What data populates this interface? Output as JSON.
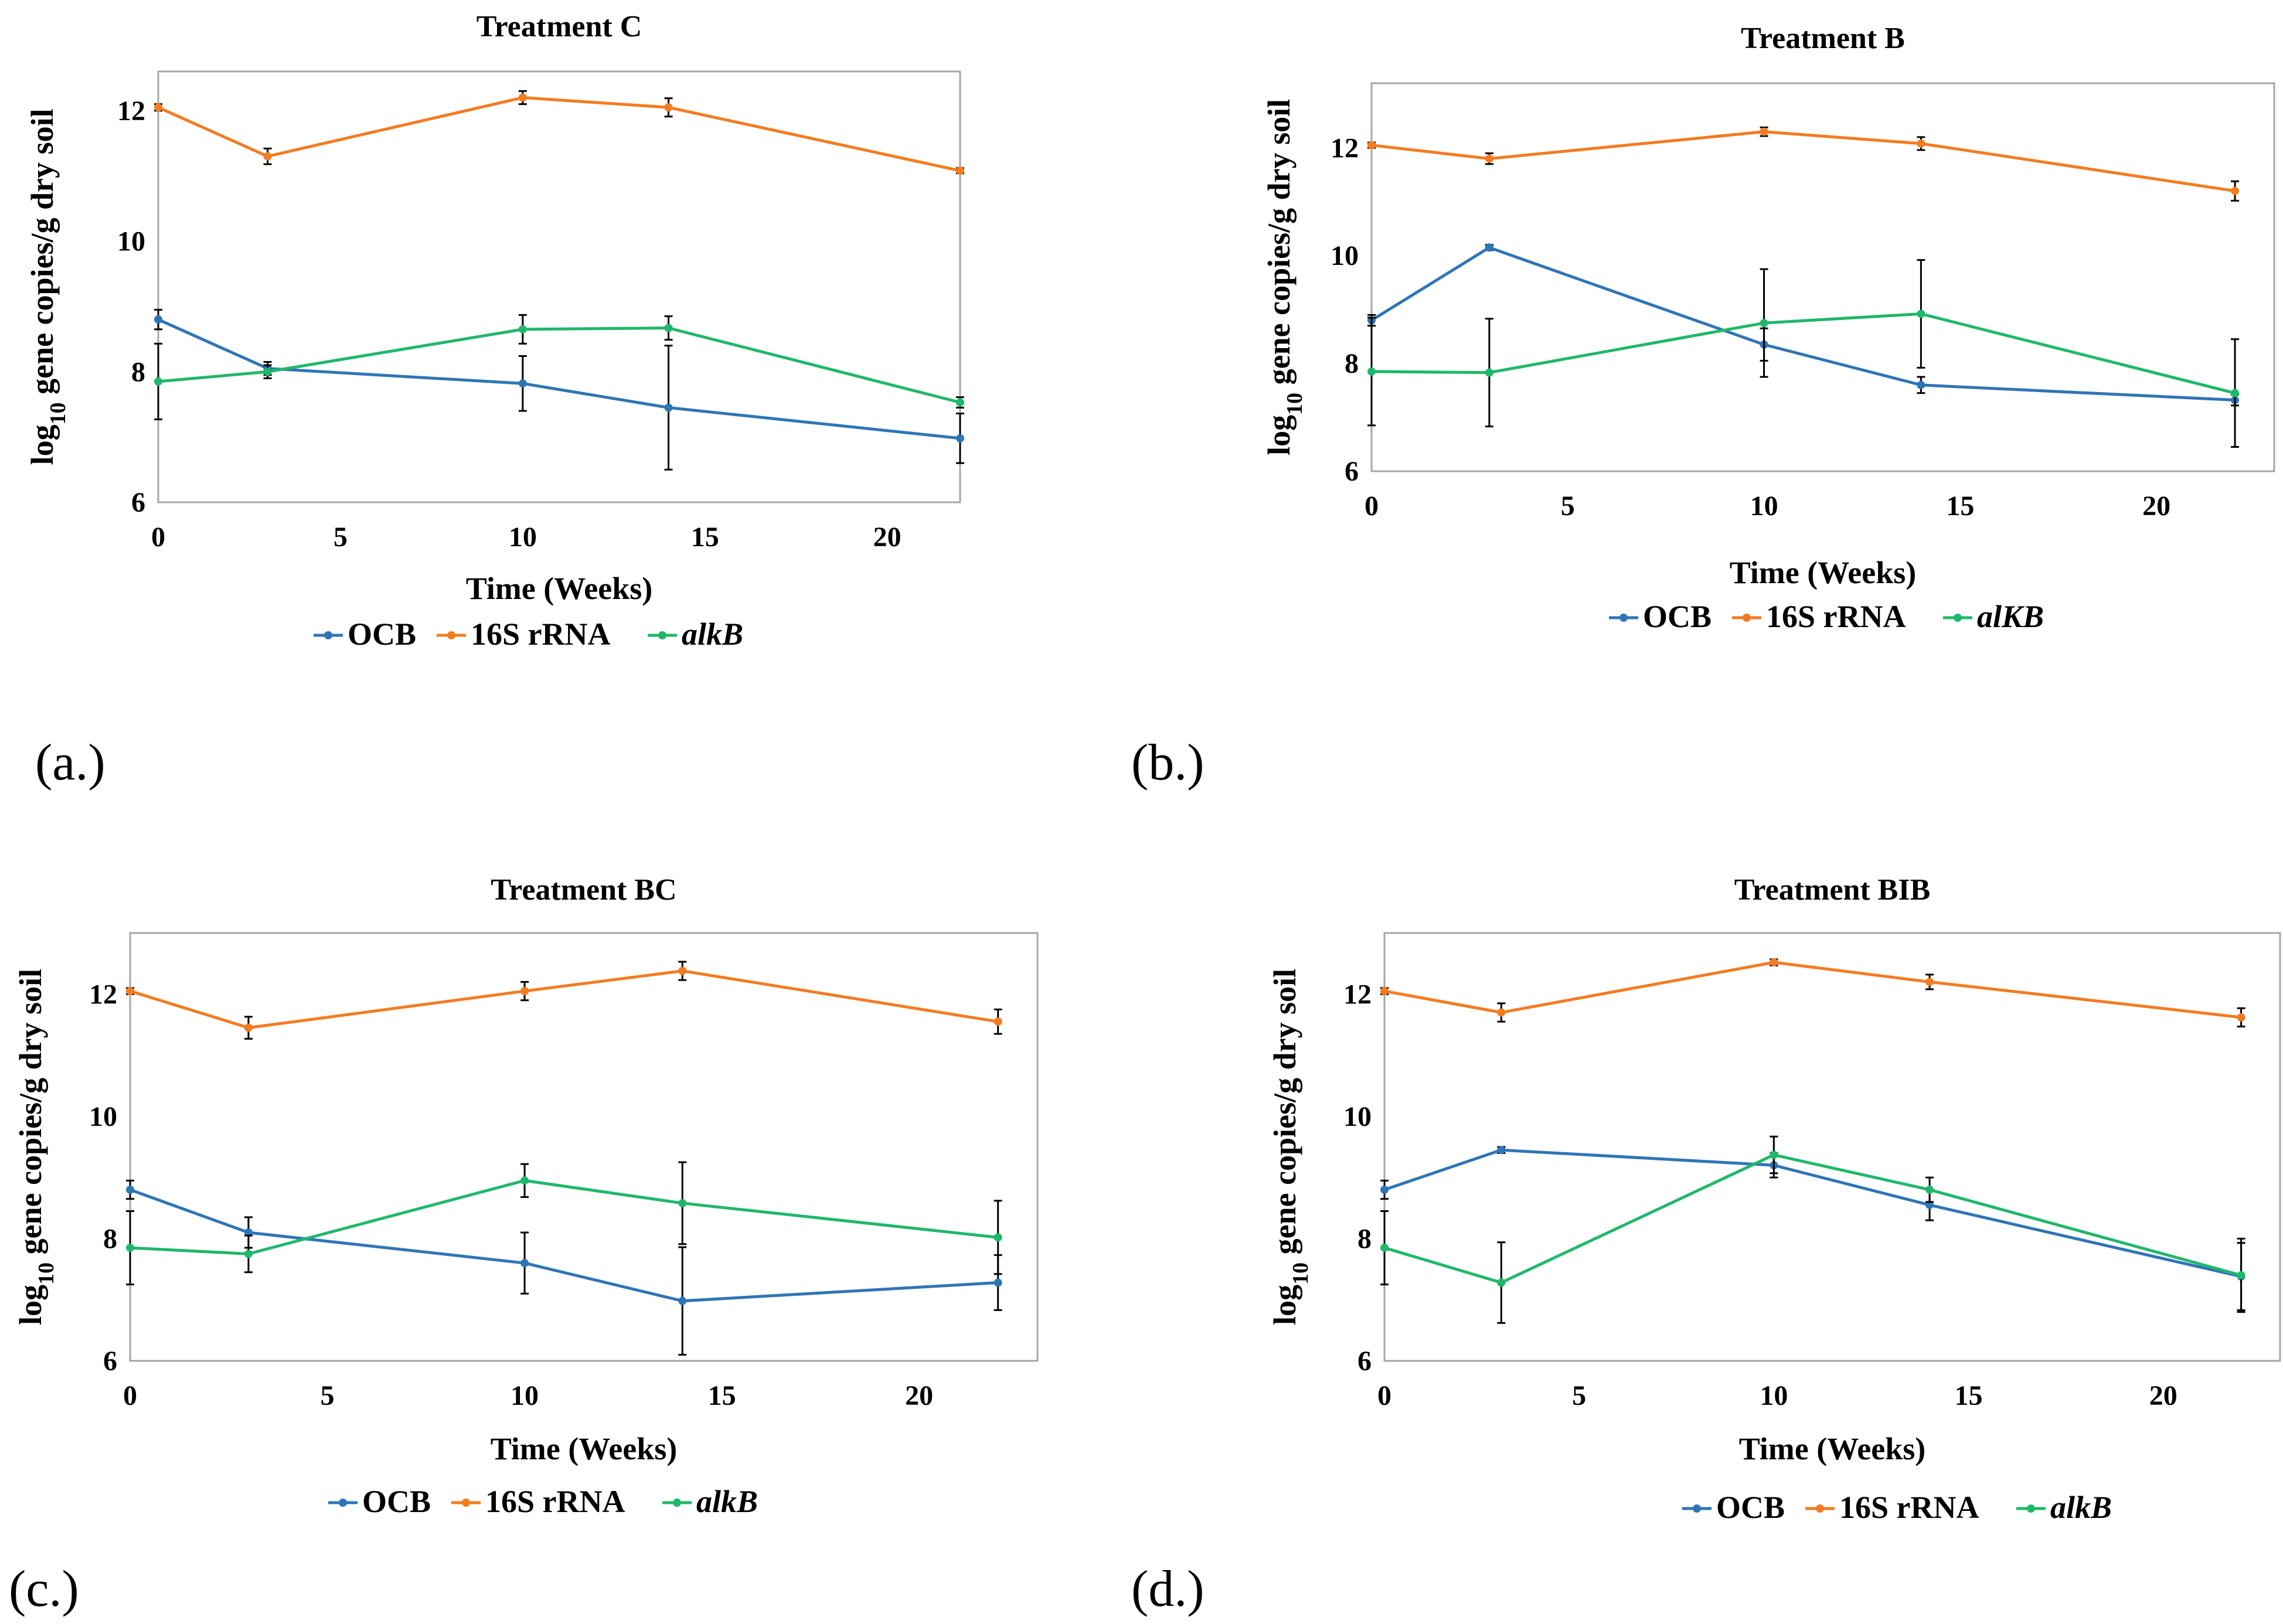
{
  "colors": {
    "OCB": "#2E75B6",
    "16S rRNA": "#F47B20",
    "alkB": "#1FB86A",
    "error_bar": "#000000"
  },
  "chart_data": [
    {
      "type": "line",
      "panel_label": "(a.)",
      "title": "Treatment C",
      "xlabel": "Time (Weeks)",
      "ylabel_parts": [
        "log",
        "10",
        " gene copies/g dry soil"
      ],
      "xlim": [
        0,
        22
      ],
      "ylim": [
        6,
        12.6
      ],
      "xticks": [
        "0",
        "5",
        "10",
        "15",
        "20"
      ],
      "yticks": [
        "6",
        "8",
        "10",
        "12"
      ],
      "x": [
        0,
        3,
        10,
        14,
        22
      ],
      "legend": [
        "OCB",
        "16S rRNA",
        "alkB"
      ],
      "series": [
        {
          "name": "OCB",
          "values": [
            8.8,
            8.05,
            7.82,
            7.45,
            6.98
          ],
          "errors": [
            0.15,
            0.1,
            0.42,
            0.95,
            0.38
          ]
        },
        {
          "name": "16S rRNA",
          "values": [
            12.05,
            11.3,
            12.2,
            12.05,
            11.08
          ],
          "errors": [
            0.05,
            0.12,
            0.1,
            0.14,
            0.04
          ]
        },
        {
          "name": "alkB",
          "values": [
            7.85,
            8.0,
            8.65,
            8.67,
            7.53
          ],
          "errors": [
            0.58,
            0.1,
            0.22,
            0.18,
            0.08
          ]
        }
      ]
    },
    {
      "type": "line",
      "panel_label": "(b.)",
      "title": "Treatment B",
      "xlabel": "Time (Weeks)",
      "ylabel_parts": [
        "log",
        "10",
        " gene copies/g dry soil"
      ],
      "xlim": [
        0,
        23
      ],
      "ylim": [
        6,
        13.2
      ],
      "xticks": [
        "0",
        "5",
        "10",
        "15",
        "20"
      ],
      "yticks": [
        "6",
        "8",
        "10",
        "12"
      ],
      "x": [
        0,
        3,
        10,
        14,
        22
      ],
      "legend": [
        "OCB",
        "16S rRNA",
        "alKB"
      ],
      "series": [
        {
          "name": "OCB",
          "values": [
            8.8,
            10.15,
            8.35,
            7.6,
            7.32
          ],
          "errors": [
            0.1,
            0.05,
            0.3,
            0.15,
            0.1
          ]
        },
        {
          "name": "16S rRNA",
          "values": [
            12.05,
            11.8,
            12.3,
            12.08,
            11.2
          ],
          "errors": [
            0.05,
            0.1,
            0.08,
            0.12,
            0.18
          ]
        },
        {
          "name": "alKB",
          "values": [
            7.85,
            7.83,
            8.75,
            8.92,
            7.45
          ],
          "errors": [
            1.0,
            1.0,
            1.0,
            1.0,
            1.0
          ]
        }
      ]
    },
    {
      "type": "line",
      "panel_label": "(c.)",
      "title": "Treatment BC",
      "xlabel": "Time (Weeks)",
      "ylabel_parts": [
        "log",
        "10",
        " gene copies/g dry soil"
      ],
      "xlim": [
        0,
        23
      ],
      "ylim": [
        6,
        13
      ],
      "xticks": [
        "0",
        "5",
        "10",
        "15",
        "20"
      ],
      "yticks": [
        "6",
        "8",
        "10",
        "12"
      ],
      "x": [
        0,
        3,
        10,
        14,
        22
      ],
      "legend": [
        "OCB",
        "16S rRNA",
        "alkB"
      ],
      "series": [
        {
          "name": "OCB",
          "values": [
            8.8,
            8.1,
            7.6,
            6.98,
            7.28
          ],
          "errors": [
            0.15,
            0.25,
            0.5,
            0.88,
            0.45
          ]
        },
        {
          "name": "16S rRNA",
          "values": [
            12.05,
            11.45,
            12.05,
            12.38,
            11.55
          ],
          "errors": [
            0.05,
            0.18,
            0.15,
            0.15,
            0.2
          ]
        },
        {
          "name": "alkB",
          "values": [
            7.85,
            7.75,
            8.95,
            8.58,
            8.02
          ],
          "errors": [
            0.6,
            0.3,
            0.27,
            0.67,
            0.6
          ]
        }
      ]
    },
    {
      "type": "line",
      "panel_label": "(d.)",
      "title": "Treatment BIB",
      "xlabel": "Time (Weeks)",
      "ylabel_parts": [
        "log",
        "10",
        " gene copies/g dry soil"
      ],
      "xlim": [
        0,
        23
      ],
      "ylim": [
        6,
        13
      ],
      "xticks": [
        "0",
        "5",
        "10",
        "15",
        "20"
      ],
      "yticks": [
        "6",
        "8",
        "10",
        "12"
      ],
      "x": [
        0,
        3,
        10,
        14,
        22
      ],
      "legend": [
        "OCB",
        "16S rRNA",
        "alkB"
      ],
      "series": [
        {
          "name": "OCB",
          "values": [
            8.8,
            9.45,
            9.2,
            8.55,
            7.38
          ],
          "errors": [
            0.15,
            0.05,
            0.2,
            0.25,
            0.55
          ]
        },
        {
          "name": "16S rRNA",
          "values": [
            12.05,
            11.7,
            12.52,
            12.2,
            11.62
          ],
          "errors": [
            0.05,
            0.15,
            0.05,
            0.12,
            0.15
          ]
        },
        {
          "name": "alkB",
          "values": [
            7.85,
            7.28,
            9.37,
            8.8,
            7.4
          ],
          "errors": [
            0.6,
            0.66,
            0.3,
            0.2,
            0.6
          ]
        }
      ]
    }
  ]
}
